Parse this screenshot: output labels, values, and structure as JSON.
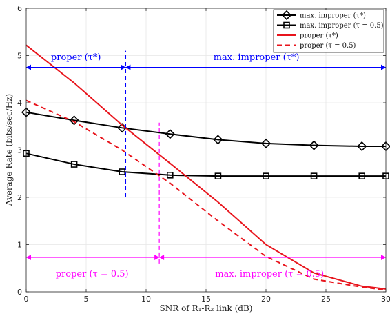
{
  "chart_data": {
    "type": "line",
    "xlabel": "SNR of R₁-R₂ link (dB)",
    "ylabel": "Average Rate (bits/sec/Hz)",
    "xlim": [
      0,
      30
    ],
    "ylim": [
      0,
      6
    ],
    "xticks": [
      "0",
      "5",
      "10",
      "15",
      "20",
      "25",
      "30"
    ],
    "yticks": [
      "0",
      "1",
      "2",
      "3",
      "4",
      "5",
      "6"
    ],
    "grid": true,
    "legend_position": "top-right",
    "series": [
      {
        "name": "max. improper (τ*)",
        "color": "#000000",
        "dash": "solid",
        "marker": "diamond",
        "x": [
          0,
          4,
          8,
          12,
          16,
          20,
          24,
          28,
          30
        ],
        "y": [
          3.8,
          3.63,
          3.47,
          3.34,
          3.22,
          3.14,
          3.1,
          3.08,
          3.08
        ]
      },
      {
        "name": "max. improper (τ = 0.5)",
        "color": "#000000",
        "dash": "solid",
        "marker": "square",
        "x": [
          0,
          4,
          8,
          12,
          16,
          20,
          24,
          28,
          30
        ],
        "y": [
          2.93,
          2.7,
          2.54,
          2.47,
          2.45,
          2.45,
          2.45,
          2.45,
          2.45
        ]
      },
      {
        "name": "proper (τ*)",
        "color": "#e8141c",
        "dash": "solid",
        "marker": "none",
        "x": [
          0,
          4,
          8,
          12,
          16,
          20,
          24,
          28,
          30
        ],
        "y": [
          5.22,
          4.42,
          3.53,
          2.72,
          1.9,
          1.0,
          0.4,
          0.12,
          0.06
        ]
      },
      {
        "name": "proper (τ = 0.5)",
        "color": "#e8141c",
        "dash": "dashed",
        "marker": "none",
        "x": [
          0,
          4,
          8,
          12,
          16,
          20,
          24,
          28,
          30
        ],
        "y": [
          4.05,
          3.6,
          3.0,
          2.3,
          1.5,
          0.75,
          0.27,
          0.1,
          0.04
        ]
      }
    ],
    "vlines": [
      {
        "x": 8.3,
        "y_from": 2.0,
        "y_to": 5.1,
        "color": "#0000ff"
      },
      {
        "x": 11.1,
        "y_from": 0.6,
        "y_to": 3.58,
        "color": "#ff00ff"
      }
    ],
    "arrows": [
      {
        "x_from": 0,
        "x_to": 8.3,
        "y": 4.75,
        "color": "#0000ff"
      },
      {
        "x_from": 8.3,
        "x_to": 30,
        "y": 4.75,
        "color": "#0000ff"
      },
      {
        "x_from": 0,
        "x_to": 11.1,
        "y": 0.73,
        "color": "#ff00ff"
      },
      {
        "x_from": 11.1,
        "x_to": 30,
        "y": 0.73,
        "color": "#ff00ff"
      }
    ],
    "annotations": [
      {
        "text": "proper (τ*)",
        "x": 4.15,
        "y": 4.96,
        "color": "#0000ff"
      },
      {
        "text": "max. improper (τ*)",
        "x": 19.2,
        "y": 4.96,
        "color": "#0000ff"
      },
      {
        "text": "proper (τ = 0.5)",
        "x": 5.5,
        "y": 0.38,
        "color": "#ff00ff"
      },
      {
        "text": "max. improper (τ = 0.5)",
        "x": 20.3,
        "y": 0.38,
        "color": "#ff00ff"
      }
    ]
  }
}
